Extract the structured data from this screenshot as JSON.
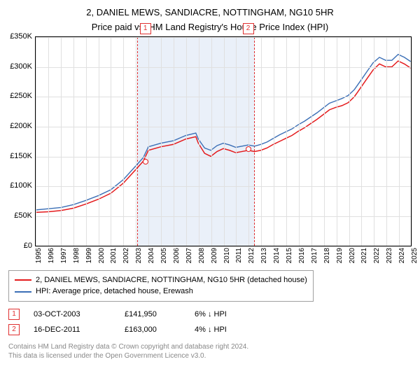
{
  "title_line1": "2, DANIEL MEWS, SANDIACRE, NOTTINGHAM, NG10 5HR",
  "title_line2": "Price paid vs. HM Land Registry's House Price Index (HPI)",
  "chart": {
    "type": "line",
    "ylim": [
      0,
      350000
    ],
    "ytick_step": 50000,
    "yticks": [
      "£0",
      "£50K",
      "£100K",
      "£150K",
      "£200K",
      "£250K",
      "£300K",
      "£350K"
    ],
    "xlim": [
      1995,
      2025
    ],
    "xticks": [
      "1995",
      "1996",
      "1997",
      "1998",
      "1999",
      "2000",
      "2001",
      "2002",
      "2003",
      "2004",
      "2005",
      "2006",
      "2007",
      "2008",
      "2009",
      "2010",
      "2011",
      "2012",
      "2013",
      "2014",
      "2015",
      "2016",
      "2017",
      "2018",
      "2019",
      "2020",
      "2021",
      "2022",
      "2023",
      "2024",
      "2025"
    ],
    "grid_color": "#e0e0e0",
    "border_color": "#000000",
    "background_color": "#ffffff",
    "highlight_band": {
      "start": 2003.1,
      "end": 2012.4,
      "fill": "#dce6f5",
      "border": "#e03030"
    },
    "series": [
      {
        "name": "price_paid",
        "color": "#e41a1c",
        "width": 1.5,
        "x": [
          1995,
          1996,
          1997,
          1998,
          1999,
          2000,
          2001,
          2002,
          2003,
          2003.6,
          2004,
          2005,
          2006,
          2007,
          2007.8,
          2008,
          2008.5,
          2009,
          2009.5,
          2010,
          2010.5,
          2011,
          2011.5,
          2012,
          2012.5,
          2013,
          2013.5,
          2014,
          2014.5,
          2015,
          2015.5,
          2016,
          2016.5,
          2017,
          2017.5,
          2018,
          2018.5,
          2019,
          2019.5,
          2020,
          2020.5,
          2021,
          2021.5,
          2022,
          2022.5,
          2023,
          2023.5,
          2024,
          2024.5,
          2025
        ],
        "y": [
          56000,
          57000,
          59000,
          63000,
          70000,
          78000,
          88000,
          105000,
          128000,
          142000,
          160000,
          166000,
          170000,
          179000,
          183000,
          172000,
          155000,
          150000,
          158000,
          163000,
          160000,
          156000,
          158000,
          160000,
          158000,
          160000,
          164000,
          170000,
          175000,
          180000,
          185000,
          192000,
          198000,
          205000,
          212000,
          220000,
          228000,
          232000,
          235000,
          240000,
          250000,
          265000,
          280000,
          295000,
          305000,
          300000,
          300000,
          310000,
          305000,
          298000
        ]
      },
      {
        "name": "hpi",
        "color": "#3b6fb6",
        "width": 1.4,
        "x": [
          1995,
          1996,
          1997,
          1998,
          1999,
          2000,
          2001,
          2002,
          2003,
          2003.6,
          2004,
          2005,
          2006,
          2007,
          2007.8,
          2008,
          2008.5,
          2009,
          2009.5,
          2010,
          2010.5,
          2011,
          2011.5,
          2012,
          2012.5,
          2013,
          2013.5,
          2014,
          2014.5,
          2015,
          2015.5,
          2016,
          2016.5,
          2017,
          2017.5,
          2018,
          2018.5,
          2019,
          2019.5,
          2020,
          2020.5,
          2021,
          2021.5,
          2022,
          2022.5,
          2023,
          2023.5,
          2024,
          2024.5,
          2025
        ],
        "y": [
          60000,
          62000,
          64000,
          69000,
          76000,
          84000,
          94000,
          111000,
          134000,
          148000,
          166000,
          172000,
          176000,
          185000,
          189000,
          179000,
          164000,
          160000,
          168000,
          172000,
          169000,
          165000,
          167000,
          169000,
          167000,
          170000,
          174000,
          180000,
          186000,
          191000,
          196000,
          203000,
          209000,
          216000,
          223000,
          231000,
          239000,
          243000,
          247000,
          252000,
          262000,
          277000,
          292000,
          307000,
          316000,
          311000,
          311000,
          321000,
          316000,
          309000
        ]
      }
    ],
    "markers": [
      {
        "id": "1",
        "x": 2003.75,
        "y": 142000,
        "color": "#e41a1c"
      },
      {
        "id": "2",
        "x": 2011.96,
        "y": 163000,
        "color": "#e41a1c"
      }
    ]
  },
  "legend": {
    "items": [
      {
        "color": "#e41a1c",
        "label": "2, DANIEL MEWS, SANDIACRE, NOTTINGHAM, NG10 5HR (detached house)"
      },
      {
        "color": "#3b6fb6",
        "label": "HPI: Average price, detached house, Erewash"
      }
    ]
  },
  "data_points": [
    {
      "id": "1",
      "date": "03-OCT-2003",
      "price": "£141,950",
      "delta": "6% ↓ HPI"
    },
    {
      "id": "2",
      "date": "16-DEC-2011",
      "price": "£163,000",
      "delta": "4% ↓ HPI"
    }
  ],
  "footnote_line1": "Contains HM Land Registry data © Crown copyright and database right 2024.",
  "footnote_line2": "This data is licensed under the Open Government Licence v3.0."
}
